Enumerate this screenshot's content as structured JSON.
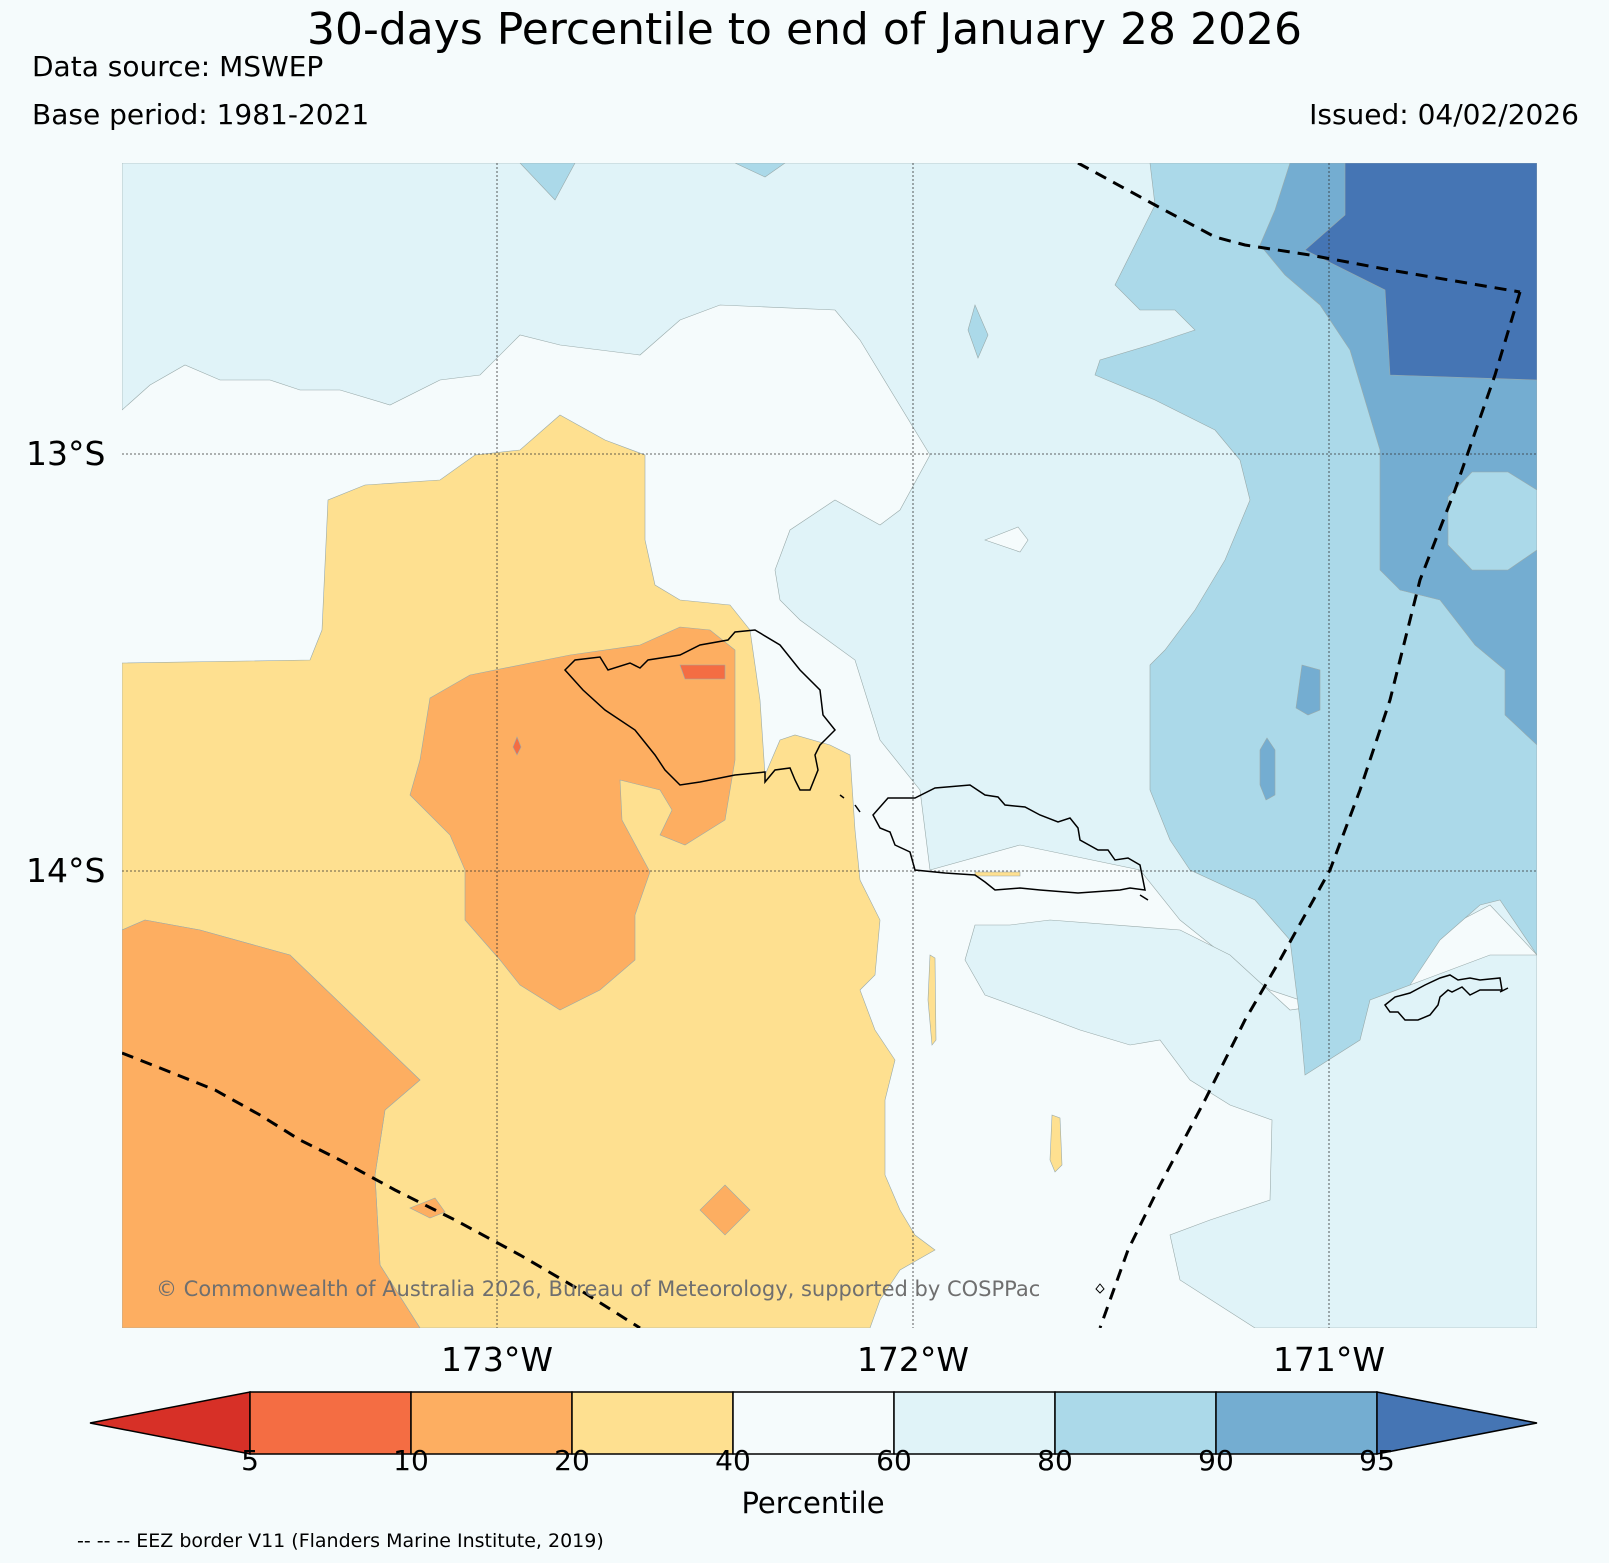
{
  "title": "30-days Percentile to end of January 28 2026",
  "data_source": "Data source: MSWEP",
  "base_period": "Base period: 1981-2021",
  "issued": "Issued: 04/02/2026",
  "lat_ticks": [
    "13°S",
    "14°S"
  ],
  "lon_ticks": [
    "173°W",
    "172°W",
    "171°W"
  ],
  "copyright": "© Commonwealth of Australia 2026, Bureau of Meteorology, supported by COSPPac",
  "colorbar": {
    "title": "Percentile",
    "ticks": [
      "5",
      "10",
      "20",
      "40",
      "60",
      "80",
      "90",
      "95"
    ],
    "bins": [
      {
        "range": "<5",
        "color": "#d73027"
      },
      {
        "range": "5-10",
        "color": "#f46d43"
      },
      {
        "range": "10-20",
        "color": "#fdae61"
      },
      {
        "range": "20-40",
        "color": "#fee090"
      },
      {
        "range": "40-60",
        "color": "#f5fbfc"
      },
      {
        "range": "60-80",
        "color": "#e0f3f8"
      },
      {
        "range": "80-90",
        "color": "#abd9e9"
      },
      {
        "range": "90-95",
        "color": "#74add1"
      },
      {
        "range": ">95",
        "color": "#4575b4"
      }
    ]
  },
  "legend_note": "-- -- -- EEZ border V11 (Flanders Marine Institute, 2019)"
}
